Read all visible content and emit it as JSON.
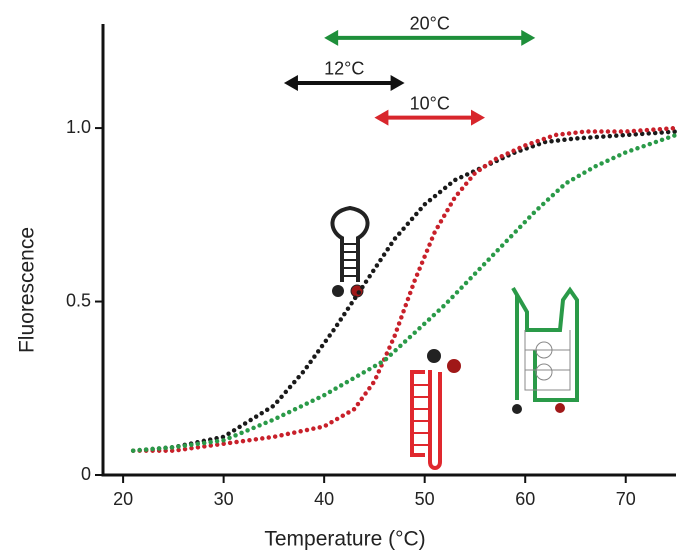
{
  "chart_data": {
    "type": "line",
    "x_label": "Temperature (°C)",
    "y_label": "Fluorescence",
    "xlim": [
      18,
      75
    ],
    "ylim": [
      0,
      1.3
    ],
    "xticks": [
      20,
      30,
      40,
      50,
      60,
      70
    ],
    "yticks": [
      0,
      {
        "value": 0.5,
        "label": "0.5"
      },
      {
        "value": 1,
        "label": "1.0"
      }
    ],
    "series": [
      {
        "color": "#1a1a1a",
        "x": [
          21,
          25,
          30,
          35,
          38,
          41,
          44,
          47,
          50,
          53,
          56,
          59,
          62,
          65,
          70,
          75
        ],
        "values": [
          0.07,
          0.08,
          0.11,
          0.2,
          0.3,
          0.42,
          0.55,
          0.68,
          0.78,
          0.85,
          0.89,
          0.93,
          0.96,
          0.97,
          0.98,
          0.99
        ]
      },
      {
        "color": "#c8202a",
        "x": [
          21,
          25,
          30,
          35,
          40,
          43,
          45,
          47,
          49,
          51,
          53,
          55,
          57,
          60,
          63,
          66,
          70,
          75
        ],
        "values": [
          0.07,
          0.07,
          0.09,
          0.11,
          0.14,
          0.19,
          0.27,
          0.4,
          0.56,
          0.7,
          0.8,
          0.87,
          0.91,
          0.95,
          0.98,
          0.99,
          0.99,
          1.0
        ]
      },
      {
        "color": "#2a9a48",
        "x": [
          21,
          25,
          30,
          35,
          40,
          43,
          46,
          49,
          52,
          55,
          58,
          61,
          64,
          67,
          70,
          73,
          75
        ],
        "values": [
          0.07,
          0.08,
          0.1,
          0.16,
          0.23,
          0.28,
          0.33,
          0.41,
          0.49,
          0.58,
          0.67,
          0.76,
          0.84,
          0.89,
          0.93,
          0.96,
          0.98
        ]
      }
    ],
    "annotations": [
      {
        "text": "20°C",
        "x": [
          40,
          61
        ],
        "y": 1.26,
        "color": "#1e8f3a"
      },
      {
        "text": "12°C",
        "x": [
          36,
          48
        ],
        "y": 1.13,
        "color": "#111111"
      },
      {
        "text": "10°C",
        "x": [
          45,
          56
        ],
        "y": 1.03,
        "color": "#d8262c"
      }
    ]
  }
}
